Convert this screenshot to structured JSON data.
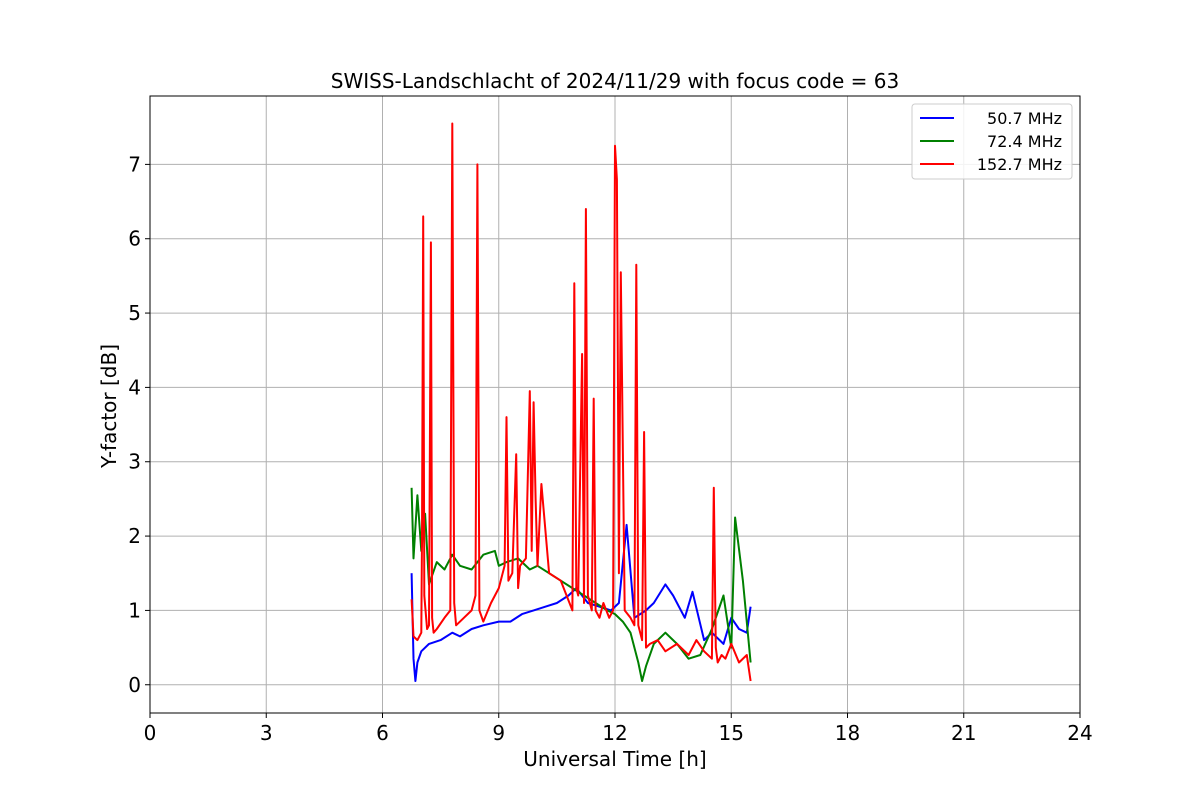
{
  "chart_data": {
    "type": "line",
    "title": "SWISS-Landschlacht of 2024/11/29 with focus code = 63",
    "xlabel": "Universal Time [h]",
    "ylabel": "Y-factor [dB]",
    "xlim": [
      0,
      24
    ],
    "ylim": [
      -0.38,
      7.92
    ],
    "xticks": [
      0,
      3,
      6,
      9,
      12,
      15,
      18,
      21,
      24
    ],
    "xtick_labels": [
      "0",
      "3",
      "6",
      "9",
      "12",
      "15",
      "18",
      "21",
      "24"
    ],
    "yticks": [
      0,
      1,
      2,
      3,
      4,
      5,
      6,
      7
    ],
    "ytick_labels": [
      "0",
      "1",
      "2",
      "3",
      "4",
      "5",
      "6",
      "7"
    ],
    "grid": true,
    "legend_position": "upper-right",
    "series": [
      {
        "name": "50.7 MHz",
        "color": "#0000ff",
        "x": [
          6.75,
          6.8,
          6.85,
          6.9,
          7.0,
          7.2,
          7.5,
          7.8,
          8.0,
          8.3,
          8.6,
          9.0,
          9.3,
          9.6,
          9.9,
          10.2,
          10.5,
          10.8,
          11.0,
          11.3,
          11.6,
          11.9,
          12.1,
          12.3,
          12.5,
          12.8,
          13.0,
          13.3,
          13.5,
          13.8,
          14.0,
          14.3,
          14.5,
          14.8,
          15.0,
          15.2,
          15.4,
          15.5
        ],
        "y": [
          1.5,
          0.35,
          0.05,
          0.3,
          0.45,
          0.55,
          0.6,
          0.7,
          0.65,
          0.75,
          0.8,
          0.85,
          0.85,
          0.95,
          1.0,
          1.05,
          1.1,
          1.2,
          1.3,
          1.1,
          1.05,
          1.0,
          1.1,
          2.15,
          0.9,
          1.0,
          1.1,
          1.35,
          1.2,
          0.9,
          1.25,
          0.6,
          0.7,
          0.55,
          0.9,
          0.75,
          0.7,
          1.05
        ]
      },
      {
        "name": "72.4 MHz",
        "color": "#008000",
        "x": [
          6.75,
          6.8,
          6.9,
          7.0,
          7.1,
          7.2,
          7.4,
          7.6,
          7.8,
          8.0,
          8.3,
          8.6,
          8.9,
          9.0,
          9.2,
          9.5,
          9.8,
          10.0,
          10.3,
          10.6,
          10.9,
          11.2,
          11.5,
          11.8,
          12.0,
          12.2,
          12.4,
          12.6,
          12.7,
          12.8,
          13.0,
          13.3,
          13.6,
          13.9,
          14.2,
          14.5,
          14.8,
          15.0,
          15.1,
          15.3,
          15.5
        ],
        "y": [
          2.65,
          1.7,
          2.55,
          1.8,
          2.3,
          1.35,
          1.65,
          1.55,
          1.75,
          1.6,
          1.55,
          1.75,
          1.8,
          1.6,
          1.65,
          1.7,
          1.55,
          1.6,
          1.5,
          1.4,
          1.3,
          1.2,
          1.1,
          1.0,
          0.95,
          0.85,
          0.7,
          0.3,
          0.05,
          0.25,
          0.55,
          0.7,
          0.55,
          0.35,
          0.4,
          0.75,
          1.2,
          0.5,
          2.25,
          1.4,
          0.3
        ]
      },
      {
        "name": "152.7 MHz",
        "color": "#ff0000",
        "x": [
          6.75,
          6.8,
          6.9,
          7.0,
          7.02,
          7.05,
          7.08,
          7.15,
          7.2,
          7.25,
          7.28,
          7.32,
          7.4,
          7.6,
          7.75,
          7.8,
          7.85,
          7.9,
          8.1,
          8.3,
          8.4,
          8.45,
          8.5,
          8.6,
          8.8,
          9.0,
          9.15,
          9.2,
          9.25,
          9.35,
          9.45,
          9.5,
          9.55,
          9.7,
          9.8,
          9.85,
          9.9,
          9.95,
          10.0,
          10.1,
          10.3,
          10.6,
          10.9,
          10.95,
          11.0,
          11.05,
          11.15,
          11.2,
          11.25,
          11.3,
          11.4,
          11.45,
          11.5,
          11.6,
          11.7,
          11.85,
          11.95,
          12.0,
          12.05,
          12.1,
          12.15,
          12.25,
          12.4,
          12.5,
          12.55,
          12.6,
          12.7,
          12.75,
          12.8,
          12.9,
          13.1,
          13.3,
          13.6,
          13.9,
          14.1,
          14.3,
          14.5,
          14.55,
          14.6,
          14.65,
          14.75,
          14.85,
          15.0,
          15.2,
          15.4,
          15.5
        ],
        "y": [
          1.15,
          0.65,
          0.6,
          0.7,
          2.0,
          6.3,
          1.2,
          0.75,
          0.8,
          5.95,
          0.9,
          0.7,
          0.75,
          0.9,
          1.0,
          7.55,
          1.1,
          0.8,
          0.9,
          1.0,
          1.2,
          7.0,
          1.0,
          0.85,
          1.1,
          1.3,
          1.6,
          3.6,
          1.4,
          1.5,
          3.1,
          1.3,
          1.6,
          1.7,
          3.95,
          1.8,
          3.8,
          2.5,
          1.6,
          2.7,
          1.5,
          1.4,
          1.0,
          5.4,
          1.3,
          1.2,
          4.45,
          1.1,
          6.4,
          1.2,
          1.0,
          3.85,
          1.0,
          0.9,
          1.1,
          0.9,
          1.0,
          7.25,
          6.8,
          1.5,
          5.55,
          1.0,
          0.9,
          0.8,
          5.65,
          0.8,
          0.6,
          3.4,
          0.5,
          0.55,
          0.6,
          0.45,
          0.55,
          0.4,
          0.6,
          0.45,
          0.35,
          2.65,
          0.5,
          0.3,
          0.4,
          0.35,
          0.55,
          0.3,
          0.4,
          0.05
        ]
      }
    ]
  }
}
